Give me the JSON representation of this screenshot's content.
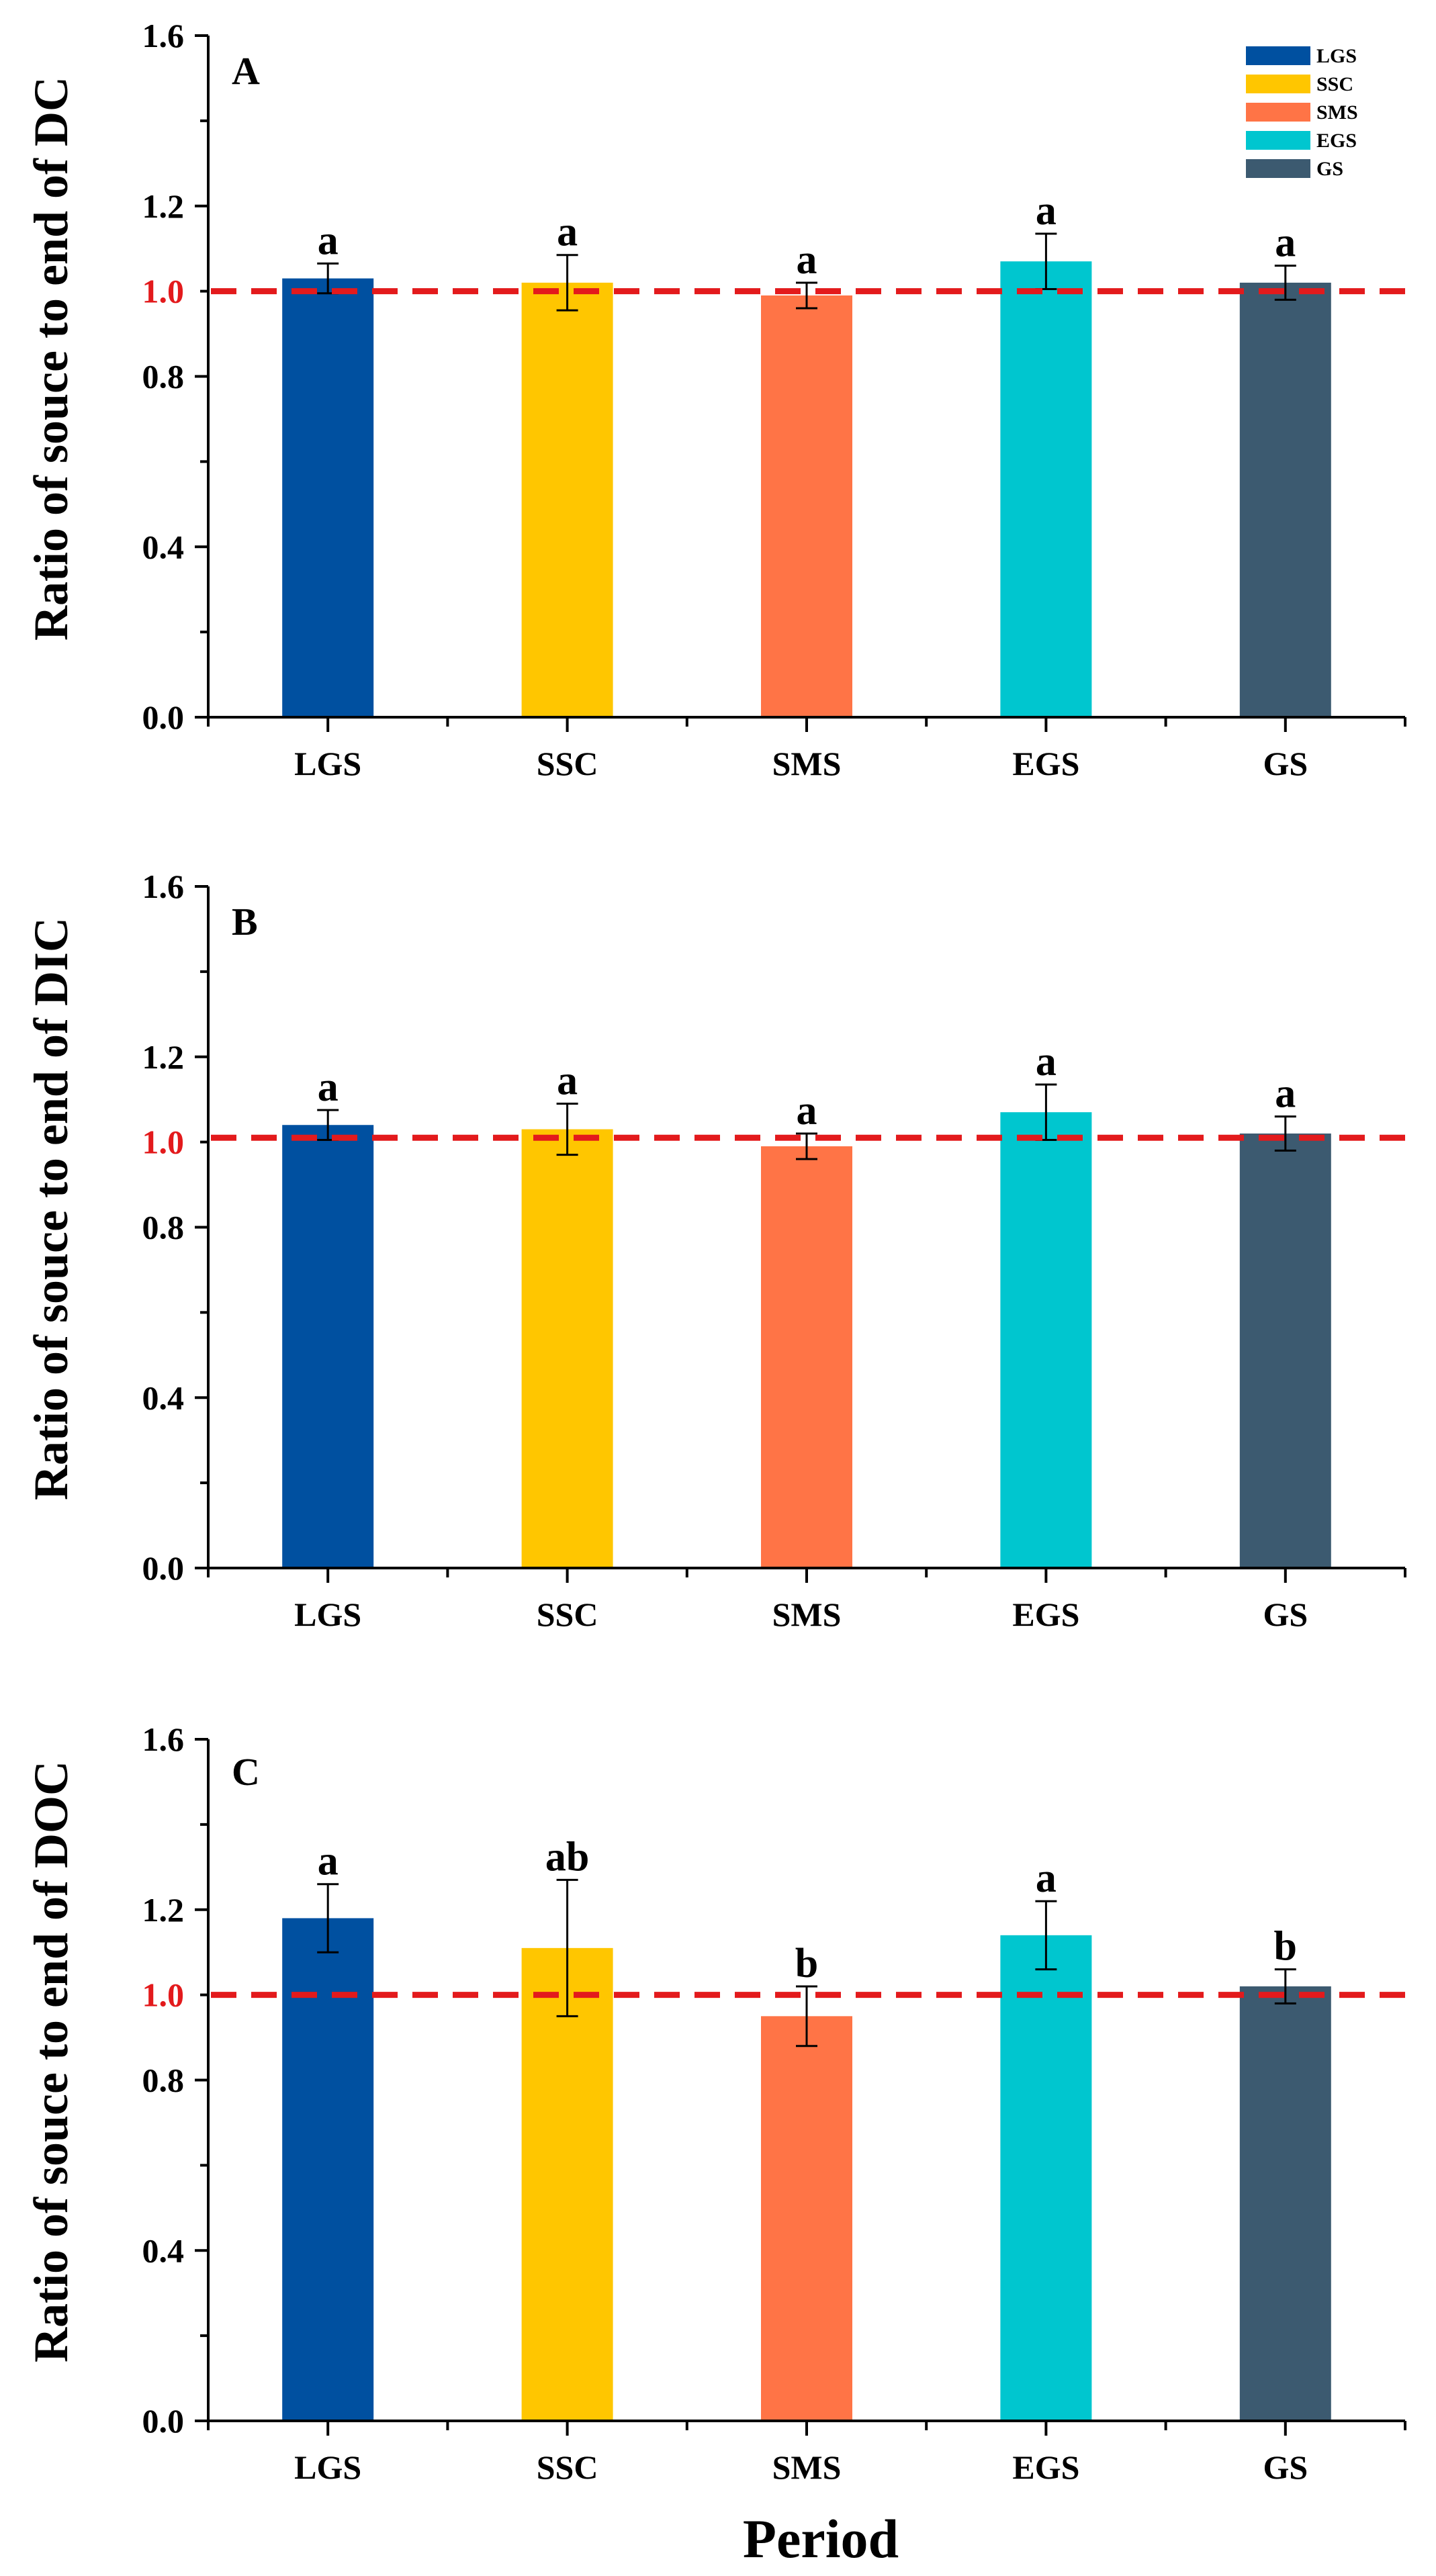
{
  "figure": {
    "xlabel": "Period"
  },
  "chart_data": [
    {
      "type": "bar",
      "panel": "A",
      "title": "",
      "xlabel": "",
      "ylabel": "Ratio of souce to end of DC",
      "categories": [
        "LGS",
        "SSC",
        "SMS",
        "EGS",
        "GS"
      ],
      "values": [
        1.03,
        1.02,
        0.99,
        1.07,
        1.02
      ],
      "errors": [
        0.035,
        0.065,
        0.03,
        0.065,
        0.04
      ],
      "significance": [
        "a",
        "a",
        "a",
        "a",
        "a"
      ],
      "ylim": [
        0,
        1.6
      ],
      "yticks": [
        0.0,
        0.4,
        0.8,
        1.0,
        1.2,
        1.6
      ],
      "reference_line": 1.0,
      "legend_entries": [
        "LGS",
        "SSC",
        "SMS",
        "EGS",
        "GS"
      ],
      "legend_position": "top-right"
    },
    {
      "type": "bar",
      "panel": "B",
      "title": "",
      "xlabel": "",
      "ylabel": "Ratio of souce to end of DIC",
      "categories": [
        "LGS",
        "SSC",
        "SMS",
        "EGS",
        "GS"
      ],
      "values": [
        1.04,
        1.03,
        0.99,
        1.07,
        1.02
      ],
      "errors": [
        0.035,
        0.06,
        0.03,
        0.065,
        0.04
      ],
      "significance": [
        "a",
        "a",
        "a",
        "a",
        "a"
      ],
      "ylim": [
        0,
        1.6
      ],
      "yticks": [
        0.0,
        0.4,
        0.8,
        1.0,
        1.2,
        1.6
      ],
      "reference_line": 1.01
    },
    {
      "type": "bar",
      "panel": "C",
      "title": "",
      "xlabel": "Period",
      "ylabel": "Ratio of souce to end of DOC",
      "categories": [
        "LGS",
        "SSC",
        "SMS",
        "EGS",
        "GS"
      ],
      "values": [
        1.18,
        1.11,
        0.95,
        1.14,
        1.02
      ],
      "errors": [
        0.08,
        0.16,
        0.07,
        0.08,
        0.04
      ],
      "significance": [
        "a",
        "ab",
        "b",
        "a",
        "b"
      ],
      "ylim": [
        0,
        1.6
      ],
      "yticks": [
        0.0,
        0.4,
        0.8,
        1.0,
        1.2,
        1.6
      ],
      "reference_line": 1.0
    }
  ],
  "colors": {
    "LGS": "#0050a0",
    "SSC": "#ffc600",
    "SMS": "#ff7446",
    "EGS": "#00c6cf",
    "GS": "#3c5a70",
    "reference_line": "#e31a1c",
    "axis": "#000000"
  }
}
